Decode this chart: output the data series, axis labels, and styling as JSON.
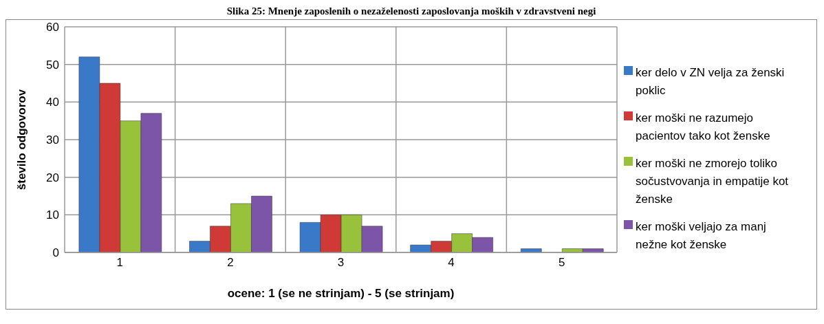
{
  "chart_data": {
    "type": "bar",
    "title": "Slika 25: Mnenje zaposlenih o nezaželenosti zaposlovanja moških v zdravstveni negi",
    "xlabel": "ocene: 1 (se ne strinjam) - 5 (se strinjam)",
    "ylabel": "število odgovorov",
    "categories": [
      "1",
      "2",
      "3",
      "4",
      "5"
    ],
    "series": [
      {
        "name": "ker delo v ZN velja za ženski poklic",
        "color": "#3a78c8",
        "values": [
          52,
          3,
          8,
          2,
          1
        ]
      },
      {
        "name": "ker moški ne razumejo pacientov tako kot ženske",
        "color": "#d03a36",
        "values": [
          45,
          7,
          10,
          3,
          0
        ]
      },
      {
        "name": "ker moški ne zmorejo toliko sočustvovanja in empatije kot ženske",
        "color": "#98c23c",
        "values": [
          35,
          13,
          10,
          5,
          1
        ]
      },
      {
        "name": "ker moški veljajo za manj nežne kot ženske",
        "color": "#7d55a8",
        "values": [
          37,
          15,
          7,
          4,
          1
        ]
      }
    ],
    "ylim": [
      0,
      60
    ],
    "yticks": [
      0,
      10,
      20,
      30,
      40,
      50,
      60
    ],
    "grid": true,
    "legend": "right"
  }
}
